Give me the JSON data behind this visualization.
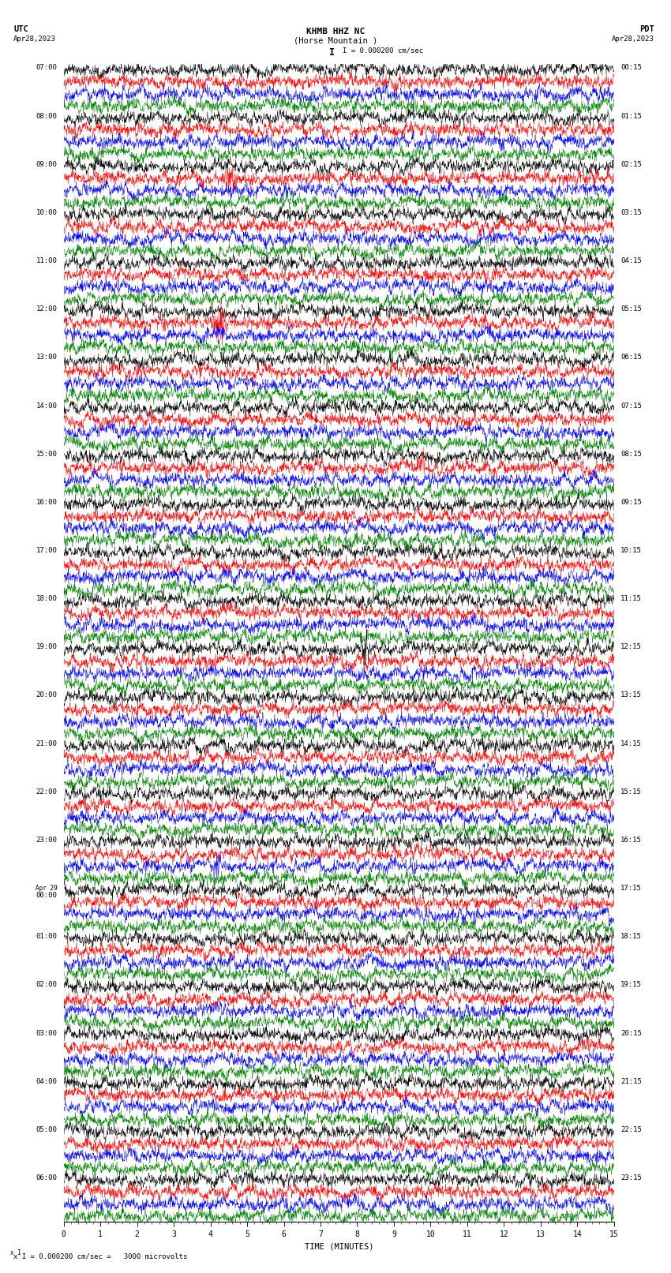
{
  "title_line1": "KHMB HHZ NC",
  "title_line2": "(Horse Mountain )",
  "scale_label": "I = 0.000200 cm/sec",
  "bottom_label": "x I = 0.000200 cm/sec =   3000 microvolts",
  "utc_label": "UTC",
  "date_left": "Apr28,2023",
  "pdt_label": "PDT",
  "date_right": "Apr28,2023",
  "xlabel": "TIME (MINUTES)",
  "xtick_max": 15,
  "background_color": "#ffffff",
  "trace_colors": [
    "black",
    "red",
    "blue",
    "green"
  ],
  "left_times": [
    "07:00",
    "08:00",
    "09:00",
    "10:00",
    "11:00",
    "12:00",
    "13:00",
    "14:00",
    "15:00",
    "16:00",
    "17:00",
    "18:00",
    "19:00",
    "20:00",
    "21:00",
    "22:00",
    "23:00",
    "Apr 29\n00:00",
    "01:00",
    "02:00",
    "03:00",
    "04:00",
    "05:00",
    "06:00"
  ],
  "right_times": [
    "00:15",
    "01:15",
    "02:15",
    "03:15",
    "04:15",
    "05:15",
    "06:15",
    "07:15",
    "08:15",
    "09:15",
    "10:15",
    "11:15",
    "12:15",
    "13:15",
    "14:15",
    "15:15",
    "16:15",
    "17:15",
    "18:15",
    "19:15",
    "20:15",
    "21:15",
    "22:15",
    "23:15"
  ],
  "num_rows": 24,
  "traces_per_row": 4,
  "noise_seed": 42,
  "fig_width": 8.5,
  "fig_height": 16.13,
  "dpi": 100,
  "title_fontsize": 8,
  "label_fontsize": 6.5,
  "tick_fontsize": 7,
  "time_fontsize": 6.5,
  "trace_amplitude": 0.38,
  "linewidth": 0.35
}
